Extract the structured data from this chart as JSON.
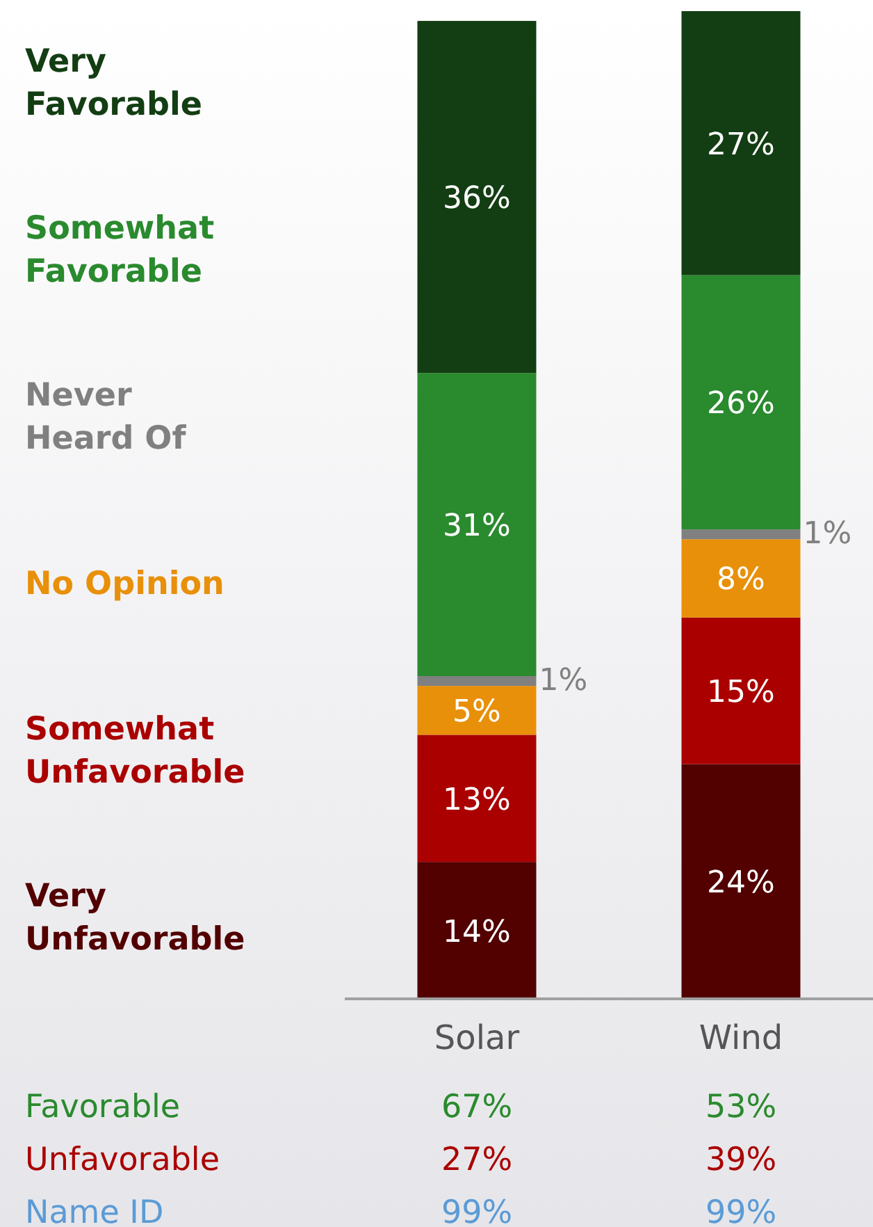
{
  "chart_data": {
    "type": "bar",
    "stacked": true,
    "categories": [
      "Solar",
      "Wind"
    ],
    "series": [
      {
        "name": "Very Unfavorable",
        "color": "#520000",
        "values": [
          14,
          24
        ],
        "value_labels": [
          "14%",
          "24%"
        ]
      },
      {
        "name": "Somewhat Unfavorable",
        "color": "#aa0000",
        "values": [
          13,
          15
        ],
        "value_labels": [
          "13%",
          "15%"
        ]
      },
      {
        "name": "No Opinion",
        "color": "#e8900a",
        "values": [
          5,
          8
        ],
        "value_labels": [
          "5%",
          "8%"
        ]
      },
      {
        "name": "Never Heard Of",
        "color": "#808080",
        "values": [
          1,
          1
        ],
        "value_labels": [
          "1%",
          "1%"
        ]
      },
      {
        "name": "Somewhat Favorable",
        "color": "#2a8a2e",
        "values": [
          31,
          26
        ],
        "value_labels": [
          "31%",
          "26%"
        ]
      },
      {
        "name": "Very Favorable",
        "color": "#133d12",
        "values": [
          36,
          27
        ],
        "value_labels": [
          "36%",
          "27%"
        ]
      }
    ],
    "annotations": [
      "Favorable",
      "67%",
      "53%",
      "Unfavorable",
      "27%",
      "39%",
      "Name ID",
      "99%",
      "99%"
    ]
  }
}
